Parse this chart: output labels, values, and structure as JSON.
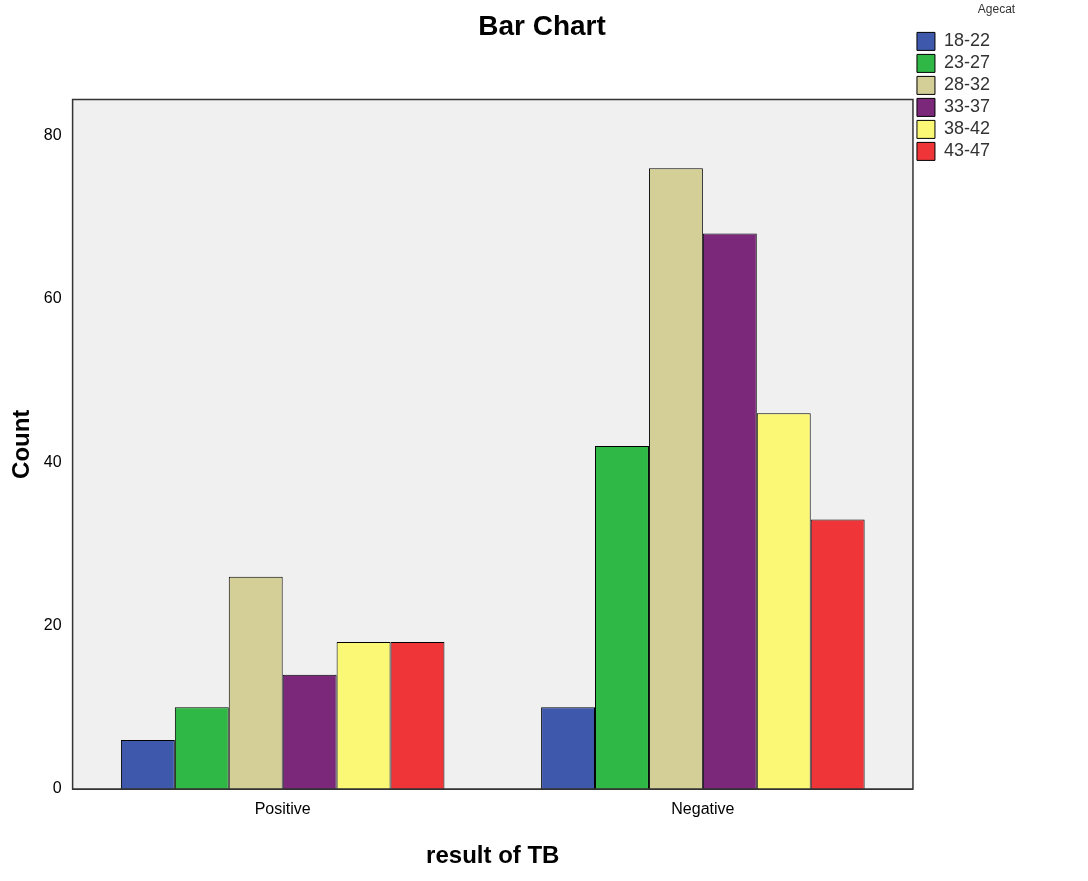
{
  "chart_data": {
    "type": "bar",
    "title": "Bar Chart",
    "xlabel": "result of TB",
    "ylabel": "Count",
    "legend_title": "Agecat",
    "legend": "top right",
    "grid": false,
    "categories": [
      "Positive",
      "Negative"
    ],
    "ylim": [
      0,
      84.4
    ],
    "yticks": [
      0,
      20,
      40,
      60,
      80
    ],
    "series": [
      {
        "name": "18-22",
        "color": "#3e58ac",
        "values": [
          6,
          10
        ]
      },
      {
        "name": "23-27",
        "color": "#2fb845",
        "values": [
          10,
          42
        ]
      },
      {
        "name": "28-32",
        "color": "#d4cf96",
        "values": [
          26,
          76
        ]
      },
      {
        "name": "33-37",
        "color": "#7b287a",
        "values": [
          14,
          68
        ]
      },
      {
        "name": "38-42",
        "color": "#fbf875",
        "values": [
          18,
          46
        ]
      },
      {
        "name": "43-47",
        "color": "#ef3538",
        "values": [
          18,
          33
        ]
      }
    ]
  }
}
